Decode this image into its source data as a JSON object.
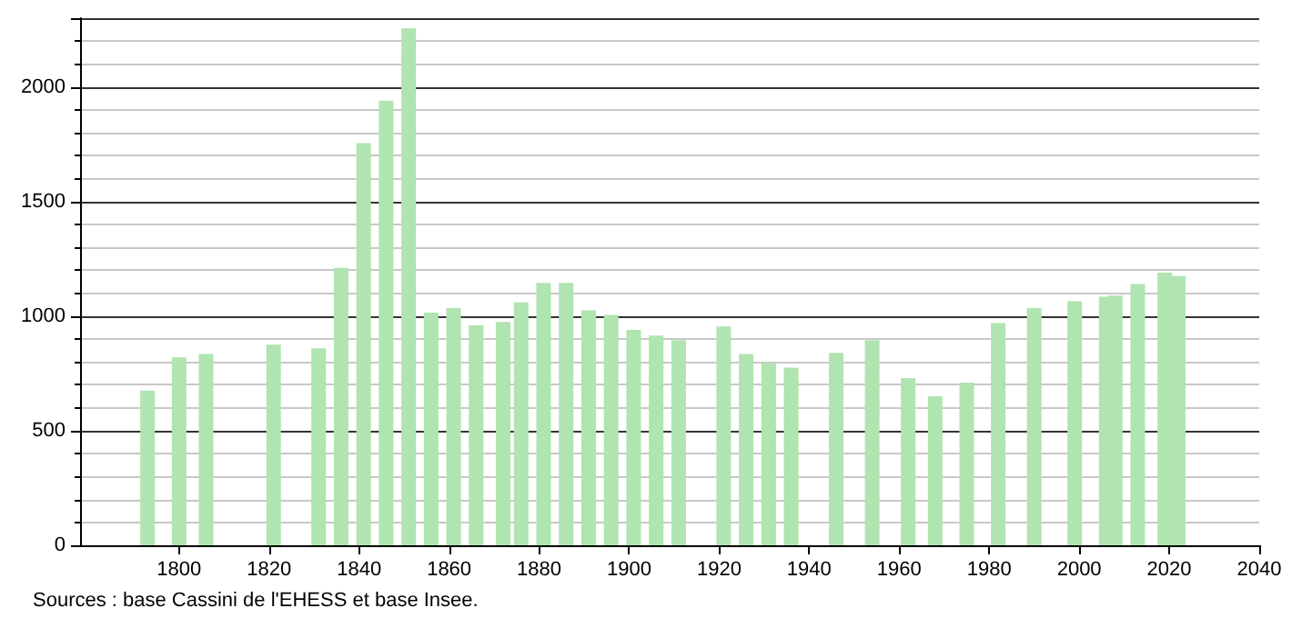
{
  "chart_data": {
    "type": "bar",
    "x": [
      1793,
      1800,
      1806,
      1821,
      1831,
      1836,
      1841,
      1846,
      1851,
      1856,
      1861,
      1866,
      1872,
      1876,
      1881,
      1886,
      1891,
      1896,
      1901,
      1906,
      1911,
      1921,
      1926,
      1931,
      1936,
      1946,
      1954,
      1962,
      1968,
      1975,
      1982,
      1990,
      1999,
      2006,
      2008,
      2013,
      2019,
      2022
    ],
    "values": [
      675,
      820,
      835,
      875,
      860,
      1210,
      1755,
      1940,
      2255,
      1015,
      1035,
      960,
      975,
      1060,
      1145,
      1145,
      1025,
      1005,
      940,
      915,
      895,
      955,
      835,
      795,
      775,
      840,
      895,
      730,
      650,
      710,
      970,
      1035,
      1065,
      1085,
      1090,
      1140,
      1190,
      1175
    ],
    "color": "#b0e4b0",
    "xlim": [
      1778,
      2040
    ],
    "xticks": [
      1800,
      1820,
      1840,
      1860,
      1880,
      1900,
      1920,
      1940,
      1960,
      1980,
      2000,
      2020,
      2040
    ],
    "ylim": [
      0,
      2300
    ],
    "yticks": [
      0,
      500,
      1000,
      1500,
      2000
    ],
    "grid": "y",
    "annotations": [
      "Sources : base Cassini de l'EHESS et base Insee."
    ]
  }
}
